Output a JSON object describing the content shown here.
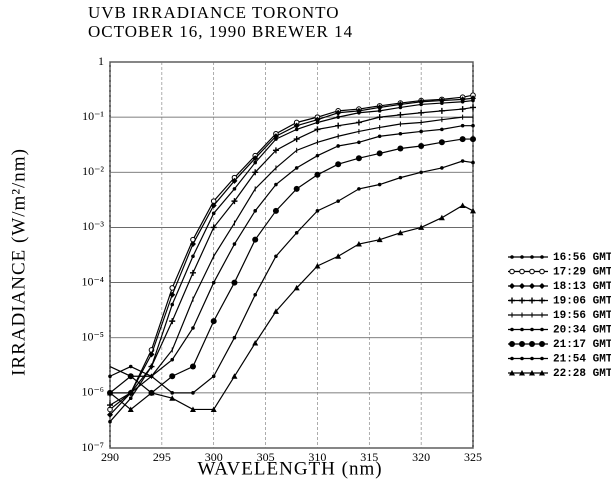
{
  "chart_data": {
    "type": "line",
    "title": [
      "UVB IRRADIANCE TORONTO",
      "OCTOBER 16, 1990   BREWER 14"
    ],
    "xlabel": "WAVELENGTH (nm)",
    "ylabel": "IRRADIANCE (W/m²/nm)",
    "log_y": true,
    "grid": true,
    "legend": "right",
    "x": [
      290,
      292,
      294,
      296,
      298,
      300,
      302,
      304,
      306,
      308,
      310,
      312,
      314,
      316,
      318,
      320,
      322,
      324,
      325
    ],
    "xlim": [
      290,
      325
    ],
    "xticks": [
      290,
      295,
      300,
      305,
      310,
      315,
      320,
      325
    ],
    "ylim": [
      1e-07,
      1
    ],
    "yticks": [
      {
        "value": 1e-07,
        "label": "10⁻⁷"
      },
      {
        "value": 1e-06,
        "label": "10⁻⁶"
      },
      {
        "value": 1e-05,
        "label": "10⁻⁵"
      },
      {
        "value": 0.0001,
        "label": "10⁻⁴"
      },
      {
        "value": 0.001,
        "label": "10⁻³"
      },
      {
        "value": 0.01,
        "label": "10⁻²"
      },
      {
        "value": 0.1,
        "label": "10⁻¹"
      },
      1
    ],
    "series": [
      {
        "name": "16:56 GMT",
        "color": "#000",
        "marker": "dot",
        "values": [
          3e-07,
          8e-07,
          3e-06,
          4e-05,
          0.0003,
          0.0018,
          0.005,
          0.015,
          0.04,
          0.06,
          0.08,
          0.1,
          0.12,
          0.13,
          0.15,
          0.17,
          0.18,
          0.19,
          0.2
        ]
      },
      {
        "name": "17:29 GMT",
        "color": "#000",
        "marker": "circle",
        "values": [
          5e-07,
          1e-06,
          6e-06,
          8e-05,
          0.0006,
          0.003,
          0.008,
          0.02,
          0.05,
          0.08,
          0.1,
          0.13,
          0.14,
          0.16,
          0.18,
          0.2,
          0.21,
          0.23,
          0.25
        ]
      },
      {
        "name": "18:13 GMT",
        "color": "#000",
        "marker": "diamond",
        "values": [
          4e-07,
          1e-06,
          5e-06,
          6e-05,
          0.0005,
          0.0025,
          0.007,
          0.018,
          0.045,
          0.07,
          0.09,
          0.12,
          0.13,
          0.15,
          0.17,
          0.19,
          0.2,
          0.21,
          0.22
        ]
      },
      {
        "name": "19:06 GMT",
        "color": "#000",
        "marker": "plus",
        "values": [
          6e-07,
          1e-06,
          3e-06,
          2e-05,
          0.00015,
          0.001,
          0.003,
          0.01,
          0.025,
          0.04,
          0.06,
          0.07,
          0.08,
          0.1,
          0.11,
          0.12,
          0.13,
          0.14,
          0.15
        ]
      },
      {
        "name": "19:56 GMT",
        "color": "#000",
        "marker": "tick",
        "values": [
          3e-06,
          2e-06,
          2e-06,
          6e-06,
          5e-05,
          0.0003,
          0.0012,
          0.005,
          0.012,
          0.025,
          0.035,
          0.045,
          0.055,
          0.065,
          0.075,
          0.08,
          0.09,
          0.1,
          0.1
        ]
      },
      {
        "name": "20:34 GMT",
        "color": "#000",
        "marker": "dot",
        "values": [
          2e-06,
          3e-06,
          2e-06,
          4e-06,
          1.5e-05,
          0.0001,
          0.0005,
          0.002,
          0.006,
          0.012,
          0.02,
          0.03,
          0.035,
          0.045,
          0.05,
          0.055,
          0.06,
          0.07,
          0.07
        ]
      },
      {
        "name": "21:17 GMT",
        "color": "#000",
        "marker": "bigdot",
        "values": [
          1e-06,
          2e-06,
          1e-06,
          2e-06,
          3e-06,
          2e-05,
          0.0001,
          0.0006,
          0.002,
          0.005,
          0.009,
          0.014,
          0.018,
          0.022,
          0.027,
          0.03,
          0.035,
          0.04,
          0.04
        ]
      },
      {
        "name": "21:54 GMT",
        "color": "#000",
        "marker": "dot",
        "values": [
          1e-06,
          1e-06,
          2e-06,
          1e-06,
          1e-06,
          2e-06,
          1e-05,
          6e-05,
          0.0003,
          0.0008,
          0.002,
          0.003,
          0.005,
          0.006,
          0.008,
          0.01,
          0.012,
          0.016,
          0.015
        ]
      },
      {
        "name": "22:28 GMT",
        "color": "#000",
        "marker": "triangle",
        "values": [
          1e-06,
          5e-07,
          1e-06,
          8e-07,
          5e-07,
          5e-07,
          2e-06,
          8e-06,
          3e-05,
          8e-05,
          0.0002,
          0.0003,
          0.0005,
          0.0006,
          0.0008,
          0.001,
          0.0015,
          0.0025,
          0.002
        ]
      }
    ]
  }
}
